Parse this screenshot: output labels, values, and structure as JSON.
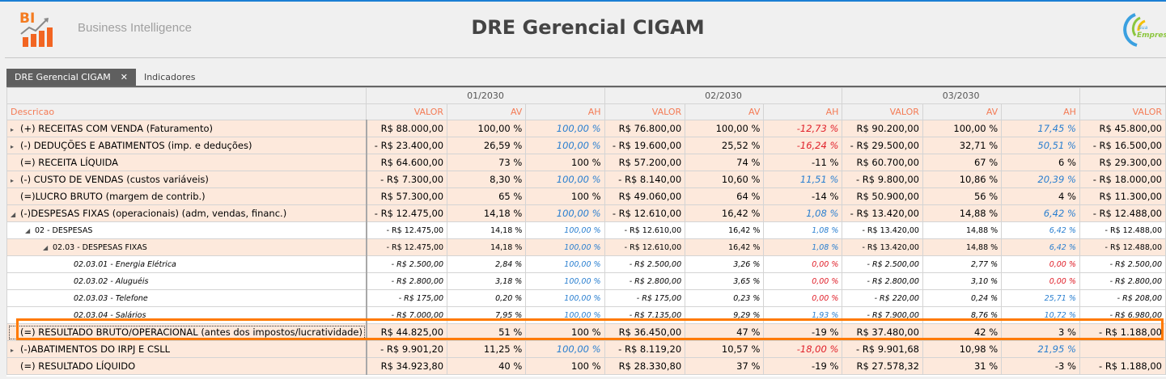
{
  "header": {
    "logo_text": "BI",
    "subtitle": "Business Intelligence",
    "title": "DRE Gerencial CIGAM",
    "company_logo_text": "Sua Empresa"
  },
  "tabs": [
    {
      "label": "DRE Gerencial CIGAM",
      "close": "✕"
    },
    {
      "label": "Indicadores"
    }
  ],
  "colors": {
    "accent": "#ff7a00",
    "header_text": "#f47b55",
    "row_bg": "#fde9dc",
    "positive": "#2a7fd0",
    "negative": "#e0202a"
  },
  "grid": {
    "periods": [
      "01/2030",
      "02/2030",
      "03/2030",
      ""
    ],
    "desc_header": "Descricao",
    "col_headers": [
      "VALOR",
      "AV",
      "AH",
      "VALOR",
      "AV",
      "AH",
      "VALOR",
      "AV",
      "AH",
      "VALOR"
    ],
    "rows": [
      {
        "label": "(+) RECEITAS COM VENDA (Faturamento)",
        "exp": "▸",
        "lvl": 0,
        "bg": "peach",
        "cells": [
          "R$ 88.000,00",
          "100,00 %",
          "100,00 %",
          "R$ 76.800,00",
          "100,00 %",
          "-12,73 %",
          "R$ 90.200,00",
          "100,00 %",
          "17,45 %",
          "R$ 45.800,00"
        ],
        "ah": [
          "blue",
          "red",
          "blue"
        ]
      },
      {
        "label": "(-) DEDUÇÕES E ABATIMENTOS (imp. e deduções)",
        "exp": "▸",
        "lvl": 0,
        "bg": "peach",
        "cells": [
          "- R$ 23.400,00",
          "26,59 %",
          "100,00 %",
          "- R$ 19.600,00",
          "25,52 %",
          "-16,24 %",
          "- R$ 29.500,00",
          "32,71 %",
          "50,51 %",
          "- R$ 16.500,00"
        ],
        "ah": [
          "blue",
          "red",
          "blue"
        ]
      },
      {
        "label": "(=) RECEITA LÍQUIDA",
        "exp": "",
        "lvl": 0,
        "bg": "peach",
        "cells": [
          "R$ 64.600,00",
          "73 %",
          "100 %",
          "R$ 57.200,00",
          "74 %",
          "-11 %",
          "R$ 60.700,00",
          "67 %",
          "6 %",
          "R$ 29.300,00"
        ],
        "ah": [
          "",
          "",
          ""
        ]
      },
      {
        "label": "(-) CUSTO DE VENDAS (custos variáveis)",
        "exp": "▸",
        "lvl": 0,
        "bg": "peach",
        "cells": [
          "- R$ 7.300,00",
          "8,30 %",
          "100,00 %",
          "- R$ 8.140,00",
          "10,60 %",
          "11,51 %",
          "- R$ 9.800,00",
          "10,86 %",
          "20,39 %",
          "- R$ 18.000,00"
        ],
        "ah": [
          "blue",
          "blue",
          "blue"
        ]
      },
      {
        "label": "(=)LUCRO BRUTO (margem de contrib.)",
        "exp": "",
        "lvl": 0,
        "bg": "peach",
        "cells": [
          "R$ 57.300,00",
          "65 %",
          "100 %",
          "R$ 49.060,00",
          "64 %",
          "-14 %",
          "R$ 50.900,00",
          "56 %",
          "4 %",
          "R$ 11.300,00"
        ],
        "ah": [
          "",
          "",
          ""
        ]
      },
      {
        "label": "(-)DESPESAS FIXAS (operacionais) (adm, vendas, financ.)",
        "exp": "◢",
        "lvl": 0,
        "bg": "peach",
        "cells": [
          "- R$ 12.475,00",
          "14,18 %",
          "100,00 %",
          "- R$ 12.610,00",
          "16,42 %",
          "1,08 %",
          "- R$ 13.420,00",
          "14,88 %",
          "6,42 %",
          "- R$ 12.488,00"
        ],
        "ah": [
          "blue",
          "blue",
          "blue"
        ]
      },
      {
        "label": "02 - DESPESAS",
        "exp": "◢",
        "lvl": 1,
        "bg": "white",
        "cells": [
          "- R$ 12.475,00",
          "14,18 %",
          "100,00 %",
          "- R$ 12.610,00",
          "16,42 %",
          "1,08 %",
          "- R$ 13.420,00",
          "14,88 %",
          "6,42 %",
          "- R$ 12.488,00"
        ],
        "ah": [
          "blue",
          "blue",
          "blue"
        ]
      },
      {
        "label": "02.03 - DESPESAS FIXAS",
        "exp": "◢",
        "lvl": 2,
        "bg": "peach",
        "cells": [
          "- R$ 12.475,00",
          "14,18 %",
          "100,00 %",
          "- R$ 12.610,00",
          "16,42 %",
          "1,08 %",
          "- R$ 13.420,00",
          "14,88 %",
          "6,42 %",
          "- R$ 12.488,00"
        ],
        "ah": [
          "blue",
          "blue",
          "blue"
        ]
      },
      {
        "label": "02.03.01 - Energia Elétrica",
        "exp": "",
        "lvl": 3,
        "bg": "white",
        "cells": [
          "- R$ 2.500,00",
          "2,84 %",
          "100,00 %",
          "- R$ 2.500,00",
          "3,26 %",
          "0,00 %",
          "- R$ 2.500,00",
          "2,77 %",
          "0,00 %",
          "- R$ 2.500,00"
        ],
        "ah": [
          "blue",
          "red",
          "red"
        ]
      },
      {
        "label": "02.03.02 - Aluguéis",
        "exp": "",
        "lvl": 3,
        "bg": "white",
        "cells": [
          "- R$ 2.800,00",
          "3,18 %",
          "100,00 %",
          "- R$ 2.800,00",
          "3,65 %",
          "0,00 %",
          "- R$ 2.800,00",
          "3,10 %",
          "0,00 %",
          "- R$ 2.800,00"
        ],
        "ah": [
          "blue",
          "red",
          "red"
        ]
      },
      {
        "label": "02.03.03 - Telefone",
        "exp": "",
        "lvl": 3,
        "bg": "white",
        "cells": [
          "- R$ 175,00",
          "0,20 %",
          "100,00 %",
          "- R$ 175,00",
          "0,23 %",
          "0,00 %",
          "- R$ 220,00",
          "0,24 %",
          "25,71 %",
          "- R$ 208,00"
        ],
        "ah": [
          "blue",
          "red",
          "blue"
        ]
      },
      {
        "label": "02.03.04 - Salários",
        "exp": "",
        "lvl": 3,
        "bg": "white",
        "cells": [
          "- R$ 7.000,00",
          "7,95 %",
          "100,00 %",
          "- R$ 7.135,00",
          "9,29 %",
          "1,93 %",
          "- R$ 7.900,00",
          "8,76 %",
          "10,72 %",
          "- R$ 6.980,00"
        ],
        "ah": [
          "blue",
          "blue",
          "blue"
        ]
      },
      {
        "label": "(=) RESULTADO BRUTO/OPERACIONAL (antes dos impostos/lucratividade)",
        "exp": "",
        "lvl": 0,
        "bg": "peach",
        "focus": true,
        "cells": [
          "R$ 44.825,00",
          "51 %",
          "100 %",
          "R$ 36.450,00",
          "47 %",
          "-19 %",
          "R$ 37.480,00",
          "42 %",
          "3 %",
          "- R$ 1.188,00"
        ],
        "ah": [
          "",
          "",
          ""
        ]
      },
      {
        "label": "(-)ABATIMENTOS DO IRPJ E CSLL",
        "exp": "▸",
        "lvl": 0,
        "bg": "peach",
        "cells": [
          "- R$ 9.901,20",
          "11,25 %",
          "100,00 %",
          "- R$ 8.119,20",
          "10,57 %",
          "-18,00 %",
          "- R$ 9.901,68",
          "10,98 %",
          "21,95 %",
          ""
        ],
        "ah": [
          "blue",
          "red",
          "blue"
        ]
      },
      {
        "label": "(=) RESULTADO LÍQUIDO",
        "exp": "",
        "lvl": 0,
        "bg": "peach",
        "cells": [
          "R$ 34.923,80",
          "40 %",
          "100 %",
          "R$ 28.330,80",
          "37 %",
          "-19 %",
          "R$ 27.578,32",
          "31 %",
          "-3 %",
          "- R$ 1.188,00"
        ],
        "ah": [
          "",
          "",
          ""
        ]
      }
    ]
  }
}
